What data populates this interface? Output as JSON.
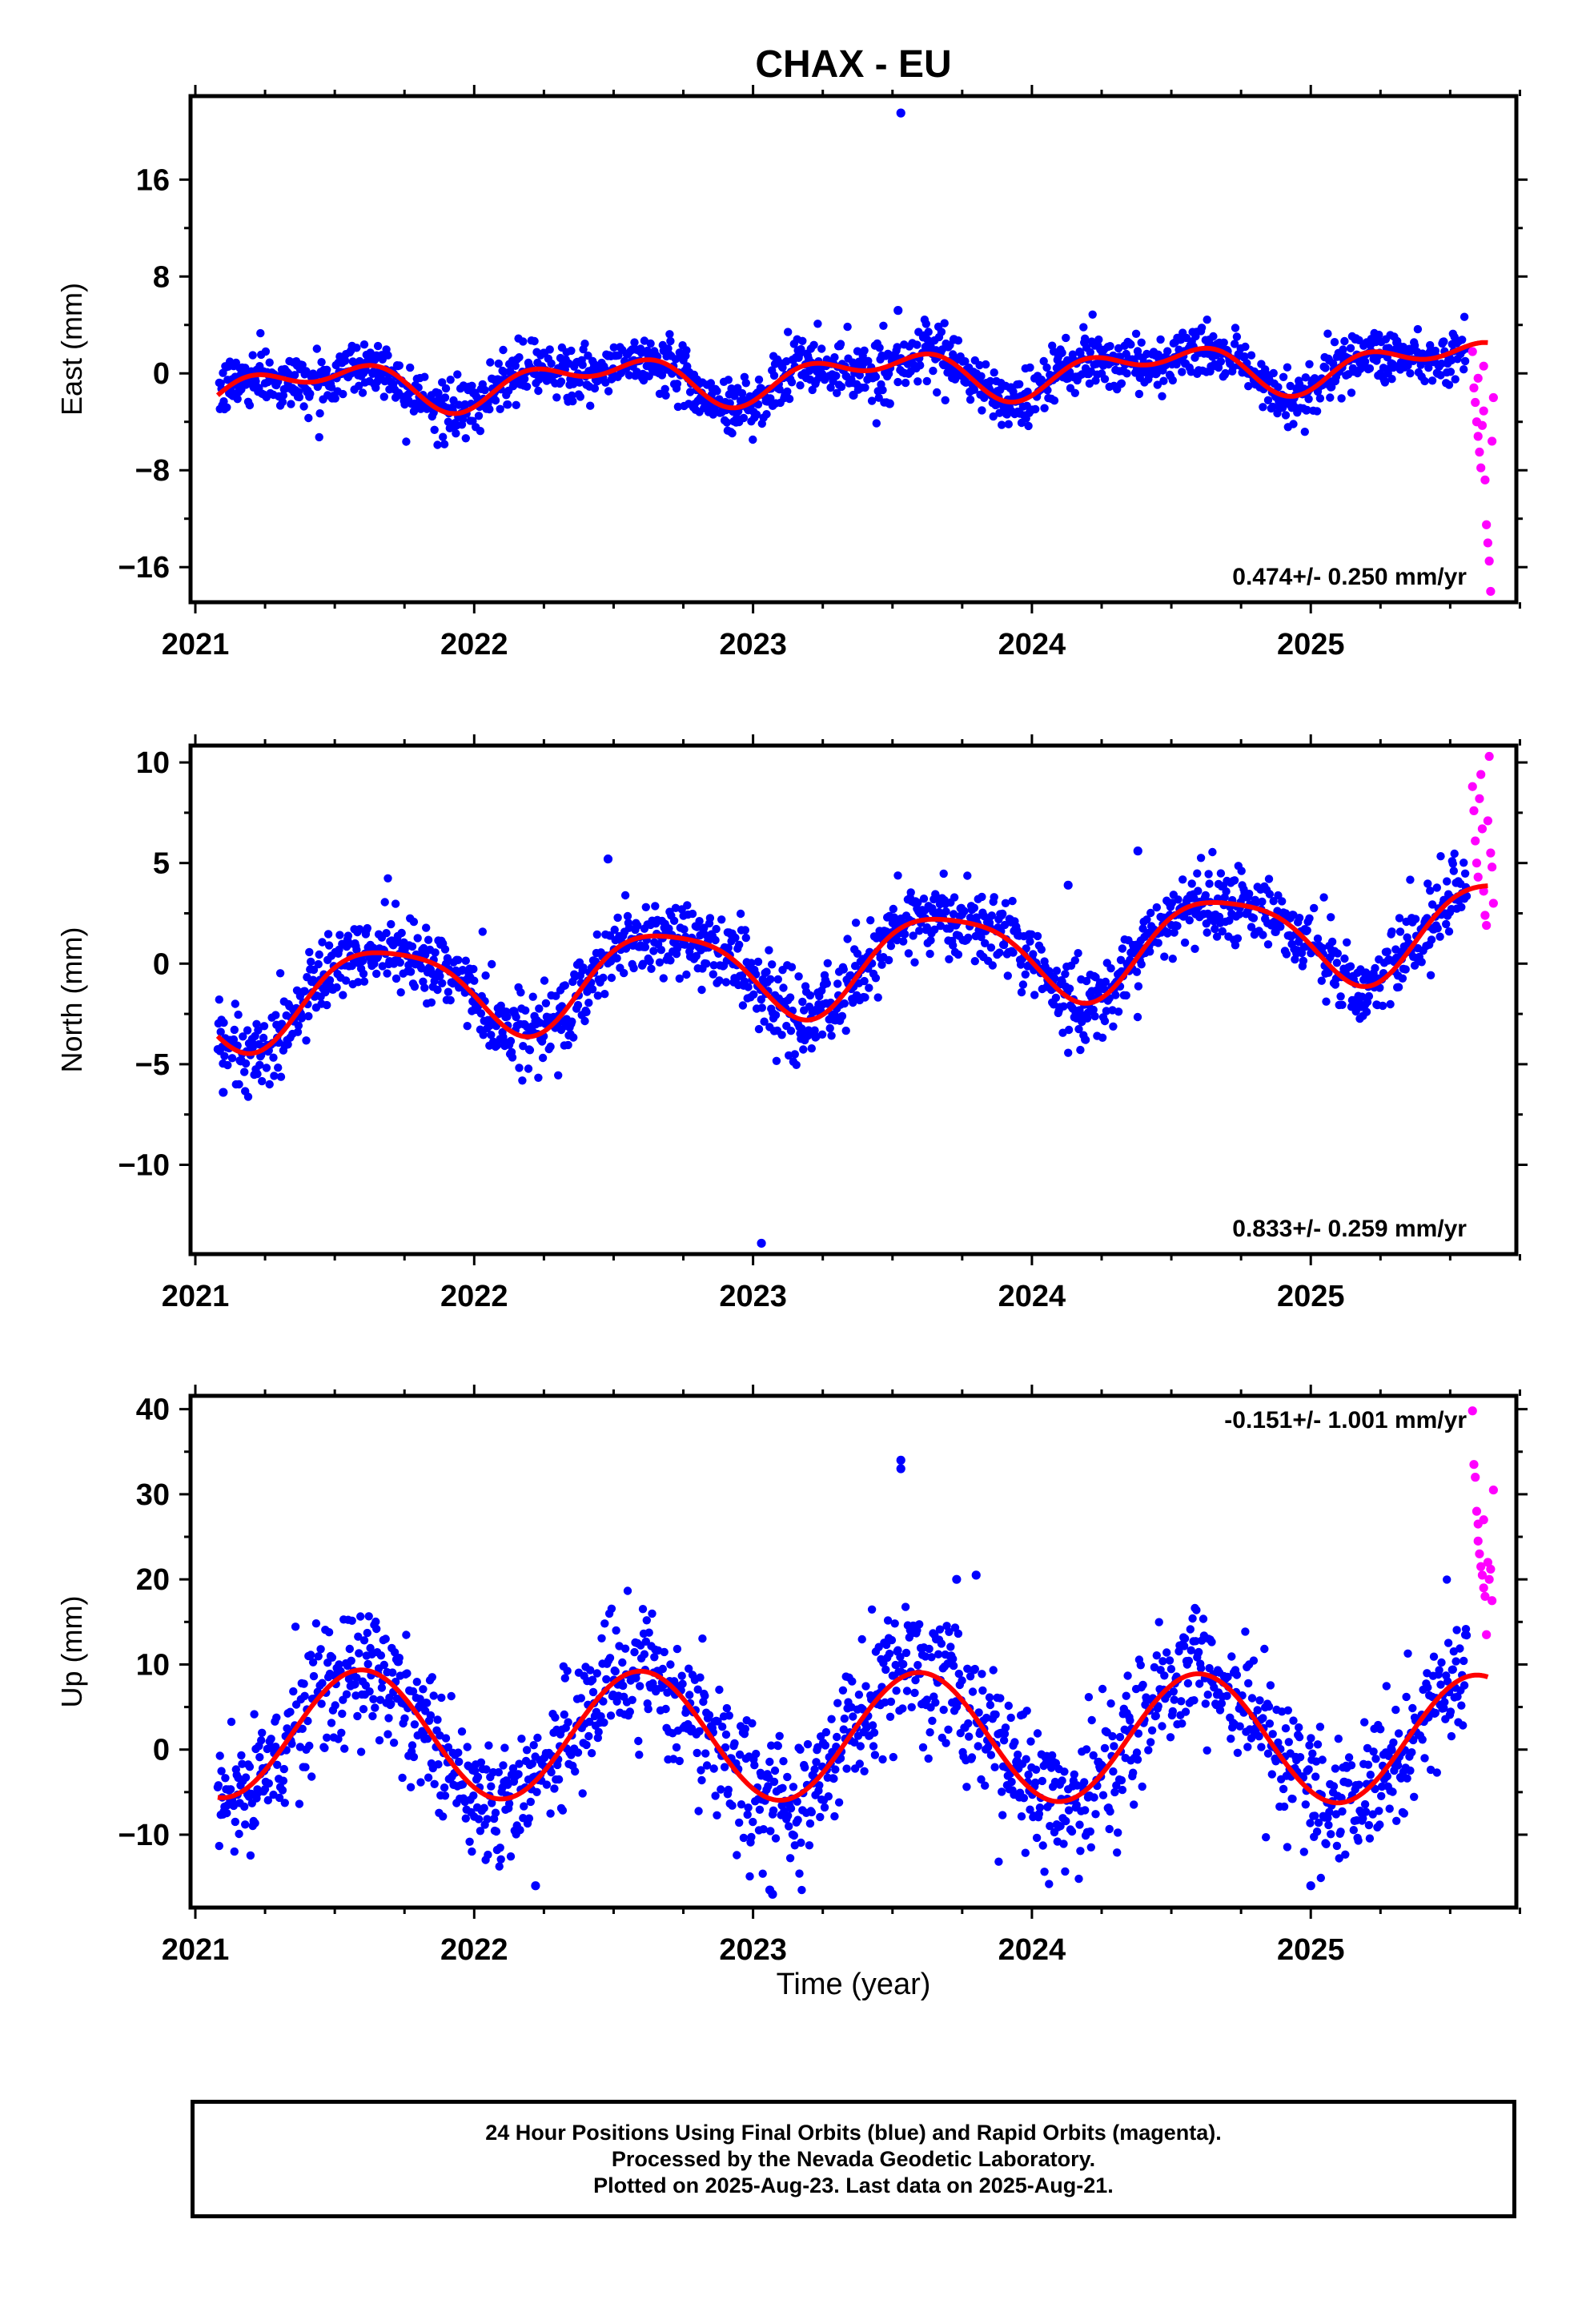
{
  "title": "CHAX - EU",
  "xlabel": "Time (year)",
  "caption": {
    "line1": "24 Hour Positions Using Final Orbits (blue) and Rapid Orbits (magenta).",
    "line2": "Processed by the Nevada Geodetic Laboratory.",
    "line3": "Plotted on 2025-Aug-23. Last data on 2025-Aug-21."
  },
  "colors": {
    "final": "#0000ff",
    "rapid": "#ff00ff",
    "model": "#ff0000",
    "axes": "#000000"
  },
  "chart_data": [
    {
      "type": "scatter",
      "component": "east",
      "ylabel": "East (mm)",
      "rate_text": "0.474+/- 0.250 mm/yr",
      "xlim": [
        2021.0,
        2025.72
      ],
      "ylim": [
        -18.5,
        22.5
      ],
      "xticks": [
        "2021",
        "2022",
        "2023",
        "2024",
        "2025"
      ],
      "yticks": [
        -16,
        -8,
        0,
        8,
        16
      ],
      "ytick_labels": [
        "−16",
        "−8",
        "0",
        "8",
        "16"
      ],
      "grid": false,
      "start": 2021.08,
      "end_final": 2025.56,
      "end_rapid": 2025.64,
      "model": {
        "rate": 0.474,
        "offset": -0.3,
        "annual_sin": 0.4,
        "annual_cos": -1.4,
        "semi_sin": 0.9,
        "semi_cos": -0.6
      },
      "noise": 1.15,
      "outliers": [
        [
          2023.53,
          21.5
        ],
        [
          2023.52,
          5.2
        ],
        [
          2023.72,
          2.8
        ],
        [
          2023.49,
          -2.5
        ],
        [
          2023.36,
          -1.8
        ]
      ],
      "rapid_points": [
        [
          2025.58,
          1.8
        ],
        [
          2025.585,
          -1.2
        ],
        [
          2025.59,
          -2.4
        ],
        [
          2025.595,
          -4.0
        ],
        [
          2025.6,
          -5.2
        ],
        [
          2025.605,
          -6.5
        ],
        [
          2025.61,
          -7.8
        ],
        [
          2025.615,
          -4.3
        ],
        [
          2025.62,
          -3.1
        ],
        [
          2025.625,
          -8.8
        ],
        [
          2025.63,
          -12.5
        ],
        [
          2025.635,
          -14.0
        ],
        [
          2025.64,
          -15.5
        ],
        [
          2025.645,
          -18.0
        ],
        [
          2025.65,
          -5.6
        ],
        [
          2025.655,
          -2.0
        ],
        [
          2025.6,
          -0.4
        ],
        [
          2025.62,
          0.6
        ]
      ]
    },
    {
      "type": "scatter",
      "component": "north",
      "ylabel": "North (mm)",
      "rate_text": "0.833+/- 0.259 mm/yr",
      "xlim": [
        2021.0,
        2025.72
      ],
      "ylim": [
        -14.2,
        10.6
      ],
      "xticks": [
        "2021",
        "2022",
        "2023",
        "2024",
        "2025"
      ],
      "yticks": [
        -10,
        -5,
        0,
        5,
        10
      ],
      "ytick_labels": [
        "−10",
        "−5",
        "0",
        "5",
        "10"
      ],
      "grid": false,
      "start": 2021.08,
      "end_final": 2025.56,
      "end_rapid": 2025.64,
      "model": {
        "rate": 0.833,
        "offset": -0.25,
        "annual_sin": -2.1,
        "annual_cos": -0.9,
        "semi_sin": -0.2,
        "semi_cos": 0.4
      },
      "noise": 0.95,
      "outliers": [
        [
          2023.03,
          -13.9
        ],
        [
          2021.1,
          -6.4
        ],
        [
          2022.48,
          5.2
        ],
        [
          2024.13,
          3.9
        ],
        [
          2024.38,
          5.6
        ]
      ],
      "rapid_points": [
        [
          2025.58,
          8.8
        ],
        [
          2025.585,
          7.6
        ],
        [
          2025.59,
          6.1
        ],
        [
          2025.595,
          5.0
        ],
        [
          2025.6,
          4.3
        ],
        [
          2025.605,
          8.2
        ],
        [
          2025.61,
          9.4
        ],
        [
          2025.615,
          6.7
        ],
        [
          2025.62,
          3.6
        ],
        [
          2025.625,
          2.4
        ],
        [
          2025.63,
          1.9
        ],
        [
          2025.635,
          7.1
        ],
        [
          2025.64,
          10.3
        ],
        [
          2025.645,
          5.5
        ],
        [
          2025.65,
          4.8
        ],
        [
          2025.655,
          3.0
        ]
      ]
    },
    {
      "type": "scatter",
      "component": "up",
      "ylabel": "Up (mm)",
      "rate_text": "-0.151+/- 1.001 mm/yr",
      "xlim": [
        2021.0,
        2025.72
      ],
      "ylim": [
        -18.0,
        41.0
      ],
      "xticks": [
        "2021",
        "2022",
        "2023",
        "2024",
        "2025"
      ],
      "yticks": [
        -10,
        0,
        10,
        20,
        30,
        40
      ],
      "ytick_labels": [
        "−10",
        "0",
        "10",
        "20",
        "30",
        "40"
      ],
      "grid": false,
      "start": 2021.08,
      "end_final": 2025.56,
      "end_rapid": 2025.64,
      "model": {
        "rate": -0.151,
        "offset": 1.6,
        "annual_sin": -4.3,
        "annual_cos": -6.2,
        "semi_sin": 0.0,
        "semi_cos": 0.0
      },
      "noise": 3.8,
      "outliers": [
        [
          2023.53,
          34.0
        ],
        [
          2023.53,
          33.0
        ],
        [
          2023.73,
          20.0
        ],
        [
          2023.8,
          20.5
        ],
        [
          2023.06,
          -16.5
        ],
        [
          2023.07,
          -17.0
        ],
        [
          2022.22,
          -16.0
        ],
        [
          2025.0,
          -16.0
        ]
      ],
      "rapid_points": [
        [
          2025.58,
          39.8
        ],
        [
          2025.585,
          33.5
        ],
        [
          2025.59,
          32.0
        ],
        [
          2025.595,
          28.0
        ],
        [
          2025.6,
          26.5
        ],
        [
          2025.605,
          23.0
        ],
        [
          2025.61,
          21.5
        ],
        [
          2025.615,
          20.5
        ],
        [
          2025.62,
          19.0
        ],
        [
          2025.625,
          18.0
        ],
        [
          2025.63,
          13.5
        ],
        [
          2025.635,
          22.0
        ],
        [
          2025.64,
          20.0
        ],
        [
          2025.645,
          21.2
        ],
        [
          2025.65,
          17.5
        ],
        [
          2025.655,
          30.5
        ],
        [
          2025.6,
          24.5
        ],
        [
          2025.62,
          27.0
        ]
      ]
    }
  ]
}
